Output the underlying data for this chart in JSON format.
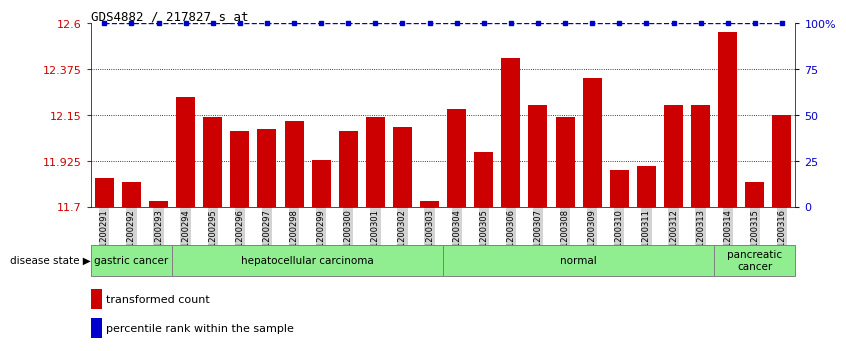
{
  "title": "GDS4882 / 217827_s_at",
  "samples": [
    "GSM1200291",
    "GSM1200292",
    "GSM1200293",
    "GSM1200294",
    "GSM1200295",
    "GSM1200296",
    "GSM1200297",
    "GSM1200298",
    "GSM1200299",
    "GSM1200300",
    "GSM1200301",
    "GSM1200302",
    "GSM1200303",
    "GSM1200304",
    "GSM1200305",
    "GSM1200306",
    "GSM1200307",
    "GSM1200308",
    "GSM1200309",
    "GSM1200310",
    "GSM1200311",
    "GSM1200312",
    "GSM1200313",
    "GSM1200314",
    "GSM1200315",
    "GSM1200316"
  ],
  "bar_values": [
    11.84,
    11.82,
    11.73,
    12.24,
    12.14,
    12.07,
    12.08,
    12.12,
    11.93,
    12.07,
    12.14,
    12.09,
    11.73,
    12.18,
    11.97,
    12.43,
    12.2,
    12.14,
    12.33,
    11.88,
    11.9,
    12.2,
    12.2,
    12.56,
    11.82,
    12.15
  ],
  "ylim_left": [
    11.7,
    12.6
  ],
  "ylim_right": [
    0,
    100
  ],
  "yticks_left": [
    11.7,
    11.925,
    12.15,
    12.375,
    12.6
  ],
  "ytick_labels_left": [
    "11.7",
    "11.925",
    "12.15",
    "12.375",
    "12.6"
  ],
  "yticks_right": [
    0,
    25,
    50,
    75,
    100
  ],
  "ytick_labels_right": [
    "0",
    "25",
    "50",
    "75",
    "100%"
  ],
  "bar_color": "#CC0000",
  "percentile_color": "#0000CC",
  "background_color": "#ffffff",
  "grid_color": "#000000",
  "label_color_left": "#CC0000",
  "label_color_right": "#0000CC",
  "group_starts": [
    0,
    3,
    13,
    23
  ],
  "group_ends": [
    3,
    13,
    23,
    26
  ],
  "group_labels": [
    "gastric cancer",
    "hepatocellular carcinoma",
    "normal",
    "pancreatic\ncancer"
  ],
  "group_color": "#90EE90",
  "xticklabel_bg": "#d3d3d3"
}
